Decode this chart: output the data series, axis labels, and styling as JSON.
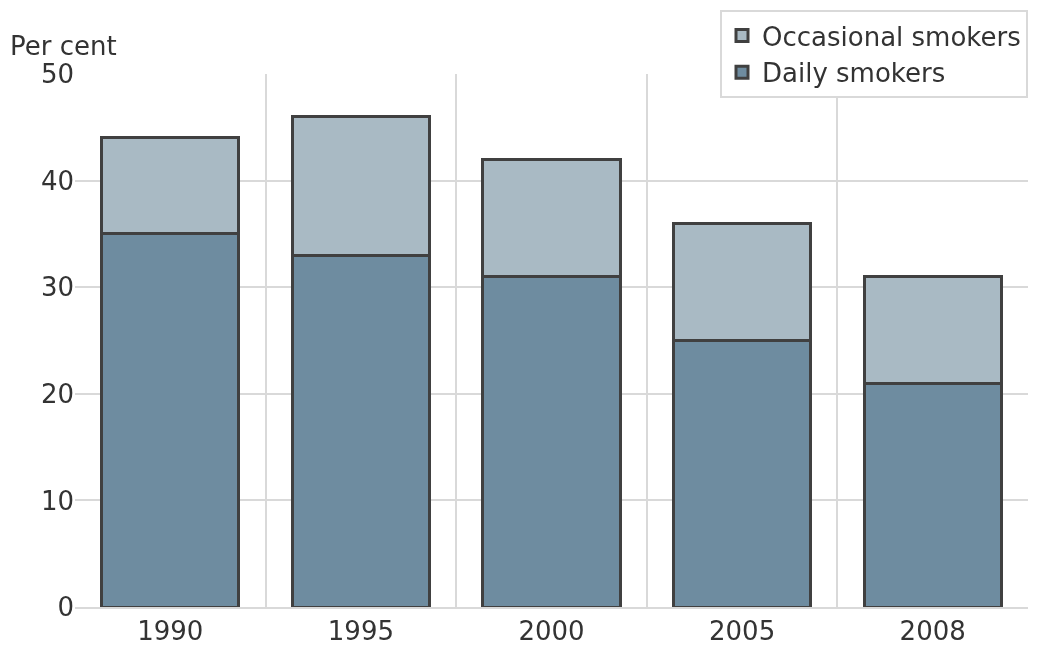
{
  "chart_data": {
    "type": "bar",
    "stacked": true,
    "ylabel": "Per cent",
    "categories": [
      "1990",
      "1995",
      "2000",
      "2005",
      "2008"
    ],
    "series": [
      {
        "name": "Daily smokers",
        "color": "#6e8ca0",
        "values": [
          35,
          33,
          31,
          25,
          21
        ]
      },
      {
        "name": "Occasional smokers",
        "color": "#a9bac4",
        "values": [
          9,
          13,
          11,
          11,
          10
        ]
      }
    ],
    "ylim": [
      0,
      50
    ],
    "yticks": [
      0,
      10,
      20,
      30,
      40,
      50
    ],
    "grid": true,
    "legend": "top right"
  }
}
